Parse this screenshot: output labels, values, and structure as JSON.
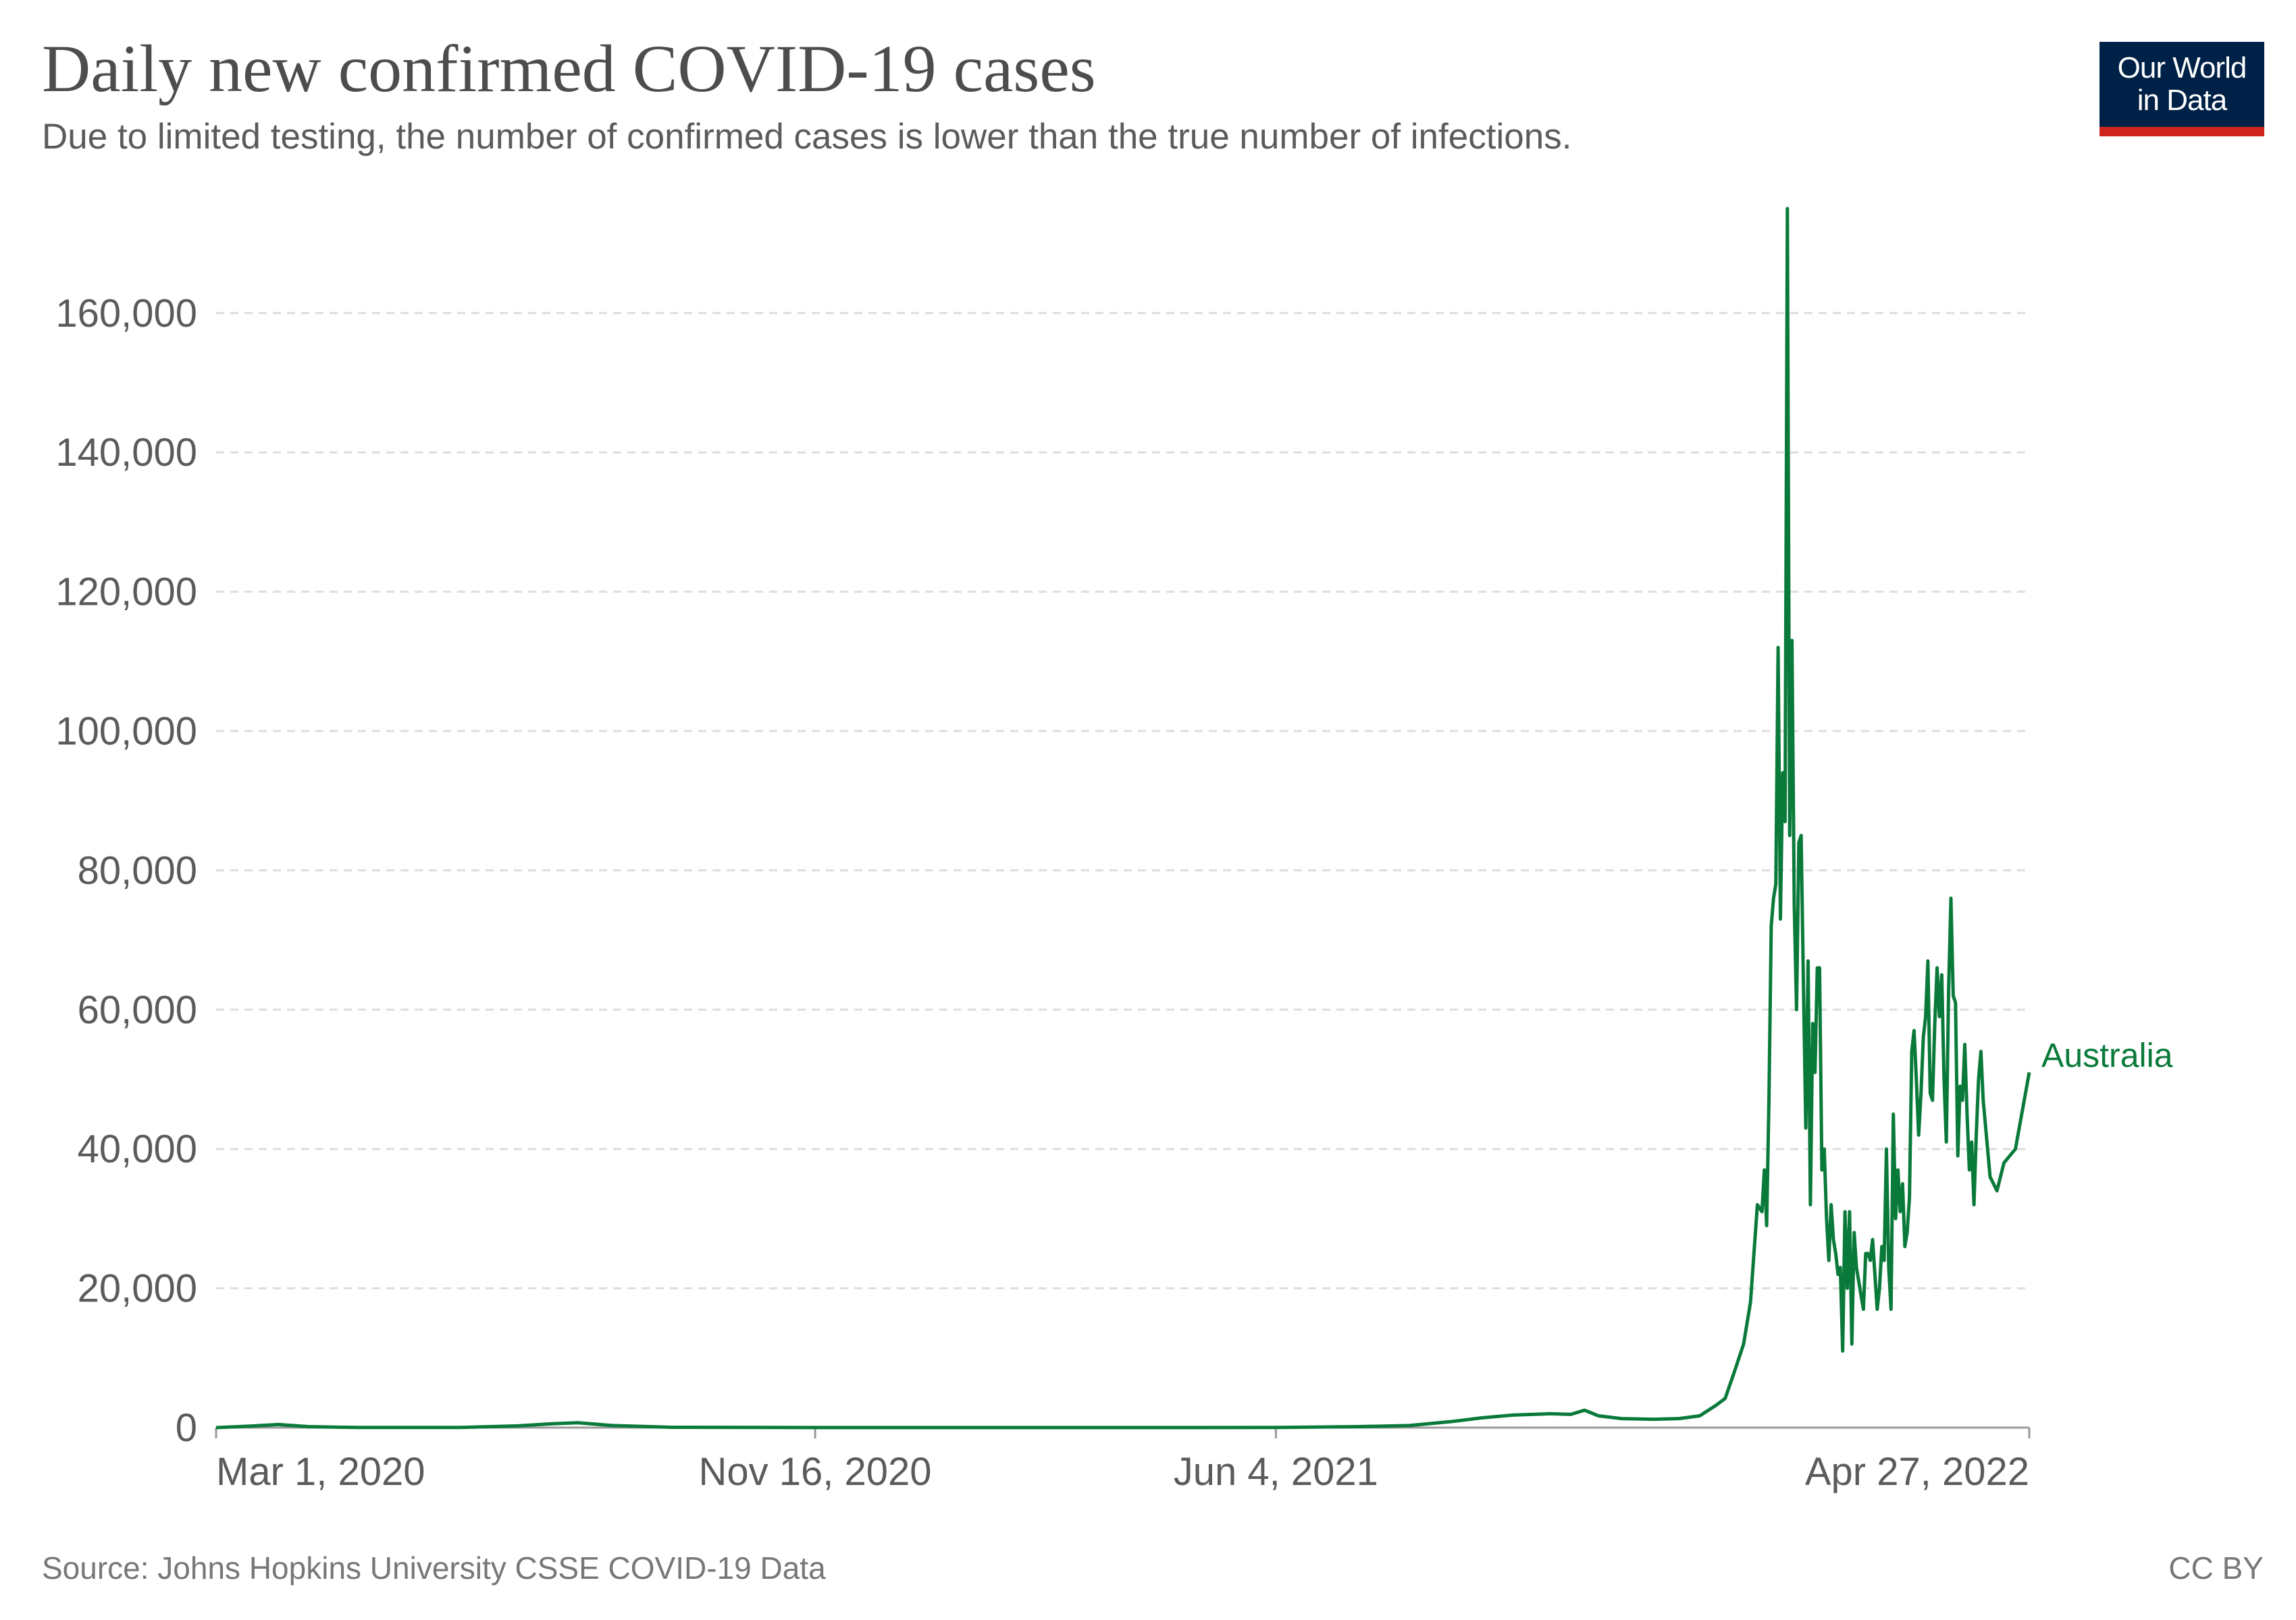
{
  "header": {
    "title": "Daily new confirmed COVID-19 cases",
    "subtitle": "Due to limited testing, the number of confirmed cases is lower than the true number of infections."
  },
  "logo": {
    "line1": "Our World",
    "line2": "in Data"
  },
  "footer": {
    "source": "Source: Johns Hopkins University CSSE COVID-19 Data",
    "license": "CC BY"
  },
  "colors": {
    "series": "#0a7a3a",
    "grid": "#dddddd",
    "axis_text": "#5b5b5b",
    "logo_bg": "#002147",
    "logo_bar": "#ce261e"
  },
  "chart_data": {
    "type": "line",
    "title": "Daily new confirmed COVID-19 cases",
    "xlabel": "",
    "ylabel": "",
    "x_range": [
      "2020-03-01",
      "2022-04-27"
    ],
    "ylim": [
      0,
      175000
    ],
    "y_ticks": [
      0,
      20000,
      40000,
      60000,
      80000,
      100000,
      120000,
      140000,
      160000
    ],
    "y_tick_labels": [
      "0",
      "20,000",
      "40,000",
      "60,000",
      "80,000",
      "100,000",
      "120,000",
      "140,000",
      "160,000"
    ],
    "x_ticks": [
      "2020-03-01",
      "2020-11-16",
      "2021-06-04",
      "2022-04-27"
    ],
    "x_tick_labels": [
      "Mar 1, 2020",
      "Nov 16, 2020",
      "Jun 4, 2021",
      "Apr 27, 2022"
    ],
    "grid": true,
    "series": [
      {
        "name": "Australia",
        "points": [
          [
            "2020-03-01",
            0
          ],
          [
            "2020-03-15",
            200
          ],
          [
            "2020-03-28",
            450
          ],
          [
            "2020-04-10",
            150
          ],
          [
            "2020-05-01",
            20
          ],
          [
            "2020-06-15",
            20
          ],
          [
            "2020-07-10",
            250
          ],
          [
            "2020-07-25",
            550
          ],
          [
            "2020-08-05",
            700
          ],
          [
            "2020-08-20",
            300
          ],
          [
            "2020-09-15",
            50
          ],
          [
            "2020-11-16",
            10
          ],
          [
            "2021-03-01",
            10
          ],
          [
            "2021-06-04",
            20
          ],
          [
            "2021-07-10",
            150
          ],
          [
            "2021-08-01",
            300
          ],
          [
            "2021-08-20",
            900
          ],
          [
            "2021-09-01",
            1400
          ],
          [
            "2021-09-15",
            1800
          ],
          [
            "2021-10-01",
            2000
          ],
          [
            "2021-10-10",
            1900
          ],
          [
            "2021-10-16",
            2500
          ],
          [
            "2021-10-22",
            1700
          ],
          [
            "2021-11-01",
            1300
          ],
          [
            "2021-11-15",
            1200
          ],
          [
            "2021-11-26",
            1300
          ],
          [
            "2021-12-05",
            1700
          ],
          [
            "2021-12-12",
            3200
          ],
          [
            "2021-12-16",
            4200
          ],
          [
            "2021-12-20",
            8000
          ],
          [
            "2021-12-24",
            12000
          ],
          [
            "2021-12-27",
            18000
          ],
          [
            "2021-12-30",
            32000
          ],
          [
            "2022-01-01",
            31000
          ],
          [
            "2022-01-02",
            37000
          ],
          [
            "2022-01-03",
            29000
          ],
          [
            "2022-01-04",
            47000
          ],
          [
            "2022-01-05",
            72000
          ],
          [
            "2022-01-06",
            76000
          ],
          [
            "2022-01-07",
            78000
          ],
          [
            "2022-01-08",
            112000
          ],
          [
            "2022-01-09",
            73000
          ],
          [
            "2022-01-10",
            94000
          ],
          [
            "2022-01-11",
            87000
          ],
          [
            "2022-01-12",
            175000
          ],
          [
            "2022-01-13",
            85000
          ],
          [
            "2022-01-14",
            113000
          ],
          [
            "2022-01-15",
            75000
          ],
          [
            "2022-01-16",
            60000
          ],
          [
            "2022-01-17",
            84000
          ],
          [
            "2022-01-18",
            85000
          ],
          [
            "2022-01-19",
            63000
          ],
          [
            "2022-01-20",
            43000
          ],
          [
            "2022-01-21",
            67000
          ],
          [
            "2022-01-22",
            32000
          ],
          [
            "2022-01-23",
            58000
          ],
          [
            "2022-01-24",
            51000
          ],
          [
            "2022-01-25",
            66000
          ],
          [
            "2022-01-26",
            66000
          ],
          [
            "2022-01-27",
            37000
          ],
          [
            "2022-01-28",
            40000
          ],
          [
            "2022-01-29",
            30000
          ],
          [
            "2022-01-30",
            24000
          ],
          [
            "2022-01-31",
            32000
          ],
          [
            "2022-02-01",
            27000
          ],
          [
            "2022-02-02",
            25000
          ],
          [
            "2022-02-03",
            22000
          ],
          [
            "2022-02-04",
            23000
          ],
          [
            "2022-02-05",
            11000
          ],
          [
            "2022-02-06",
            31000
          ],
          [
            "2022-02-07",
            20000
          ],
          [
            "2022-02-08",
            31000
          ],
          [
            "2022-02-09",
            12000
          ],
          [
            "2022-02-10",
            28000
          ],
          [
            "2022-02-11",
            23000
          ],
          [
            "2022-02-12",
            21000
          ],
          [
            "2022-02-13",
            19000
          ],
          [
            "2022-02-14",
            17000
          ],
          [
            "2022-02-15",
            25000
          ],
          [
            "2022-02-16",
            25000
          ],
          [
            "2022-02-17",
            24000
          ],
          [
            "2022-02-18",
            27000
          ],
          [
            "2022-02-19",
            22000
          ],
          [
            "2022-02-20",
            17000
          ],
          [
            "2022-02-21",
            20000
          ],
          [
            "2022-02-22",
            26000
          ],
          [
            "2022-02-23",
            24000
          ],
          [
            "2022-02-24",
            40000
          ],
          [
            "2022-02-25",
            23000
          ],
          [
            "2022-02-26",
            17000
          ],
          [
            "2022-02-27",
            45000
          ],
          [
            "2022-02-28",
            30000
          ],
          [
            "2022-03-01",
            37000
          ],
          [
            "2022-03-02",
            31000
          ],
          [
            "2022-03-03",
            35000
          ],
          [
            "2022-03-04",
            26000
          ],
          [
            "2022-03-05",
            28000
          ],
          [
            "2022-03-06",
            33000
          ],
          [
            "2022-03-07",
            54000
          ],
          [
            "2022-03-08",
            57000
          ],
          [
            "2022-03-09",
            50000
          ],
          [
            "2022-03-10",
            42000
          ],
          [
            "2022-03-11",
            48000
          ],
          [
            "2022-03-12",
            56000
          ],
          [
            "2022-03-13",
            59000
          ],
          [
            "2022-03-14",
            67000
          ],
          [
            "2022-03-15",
            48000
          ],
          [
            "2022-03-16",
            47000
          ],
          [
            "2022-03-17",
            58000
          ],
          [
            "2022-03-18",
            66000
          ],
          [
            "2022-03-19",
            59000
          ],
          [
            "2022-03-20",
            65000
          ],
          [
            "2022-03-21",
            50000
          ],
          [
            "2022-03-22",
            41000
          ],
          [
            "2022-03-23",
            63000
          ],
          [
            "2022-03-24",
            76000
          ],
          [
            "2022-03-25",
            62000
          ],
          [
            "2022-03-26",
            61000
          ],
          [
            "2022-03-27",
            39000
          ],
          [
            "2022-03-28",
            49000
          ],
          [
            "2022-03-29",
            47000
          ],
          [
            "2022-03-30",
            55000
          ],
          [
            "2022-03-31",
            45000
          ],
          [
            "2022-04-01",
            37000
          ],
          [
            "2022-04-02",
            41000
          ],
          [
            "2022-04-03",
            32000
          ],
          [
            "2022-04-04",
            42000
          ],
          [
            "2022-04-05",
            50000
          ],
          [
            "2022-04-06",
            54000
          ],
          [
            "2022-04-07",
            47000
          ],
          [
            "2022-04-10",
            36000
          ],
          [
            "2022-04-13",
            34000
          ],
          [
            "2022-04-16",
            38000
          ],
          [
            "2022-04-21",
            40000
          ],
          [
            "2022-04-27",
            51000
          ]
        ]
      }
    ]
  }
}
